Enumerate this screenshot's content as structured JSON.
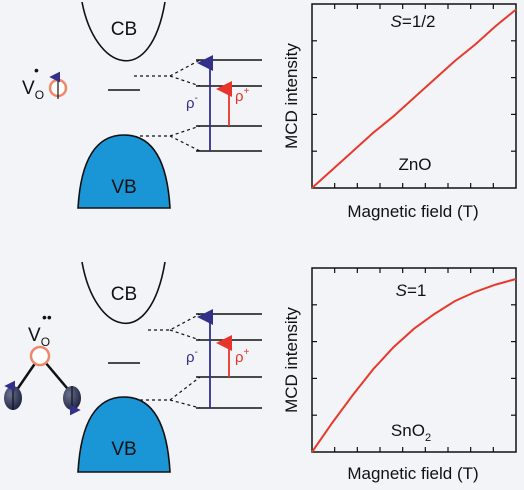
{
  "colors": {
    "background": "#f3f4f7",
    "band_fill": "#1a95d6",
    "curve_red": "#e83a2c",
    "arrow_red": "#e8342a",
    "arrow_blue": "#33308a",
    "vacancy_orange": "#f0866a",
    "oxygen_atom": "#2e3453",
    "text": "#111111"
  },
  "panels": [
    {
      "band_diagram": {
        "cb_label": "CB",
        "vb_label": "VB",
        "vacancy_symbol": "V",
        "vacancy_sub": "O",
        "vacancy_charge": "•",
        "rho_minus": {
          "base": "ρ",
          "sup": "-"
        },
        "rho_plus": {
          "base": "ρ",
          "sup": "+"
        }
      },
      "chart_data": {
        "type": "line",
        "title": "",
        "annotation_spin": {
          "italic": "S",
          "rest": "=1/2"
        },
        "annotation_material": {
          "base": "ZnO",
          "sub": ""
        },
        "xlabel": "Magnetic field (T)",
        "ylabel": "MCD intensity",
        "x_ticks_count": 8,
        "y_ticks_count": 4,
        "series": [
          {
            "x": [
              0,
              0.1,
              0.2,
              0.3,
              0.4,
              0.5,
              0.6,
              0.7,
              0.8,
              0.9,
              1.0
            ],
            "values": [
              0,
              0.1,
              0.2,
              0.3,
              0.39,
              0.49,
              0.59,
              0.69,
              0.78,
              0.88,
              0.97
            ]
          }
        ]
      }
    },
    {
      "band_diagram": {
        "cb_label": "CB",
        "vb_label": "VB",
        "vacancy_symbol": "V",
        "vacancy_sub": "O",
        "vacancy_charge": "••",
        "rho_minus": {
          "base": "ρ",
          "sup": "-"
        },
        "rho_plus": {
          "base": "ρ",
          "sup": "+"
        }
      },
      "chart_data": {
        "type": "line",
        "title": "",
        "annotation_spin": {
          "italic": "S",
          "rest": "=1"
        },
        "annotation_material": {
          "base": "SnO",
          "sub": "2"
        },
        "xlabel": "Magnetic field (T)",
        "ylabel": "MCD intensity",
        "x_ticks_count": 8,
        "y_ticks_count": 4,
        "series": [
          {
            "x": [
              0,
              0.1,
              0.2,
              0.3,
              0.4,
              0.5,
              0.6,
              0.7,
              0.8,
              0.9,
              1.0
            ],
            "values": [
              0,
              0.16,
              0.31,
              0.45,
              0.57,
              0.67,
              0.75,
              0.82,
              0.87,
              0.91,
              0.94
            ]
          }
        ]
      }
    }
  ]
}
